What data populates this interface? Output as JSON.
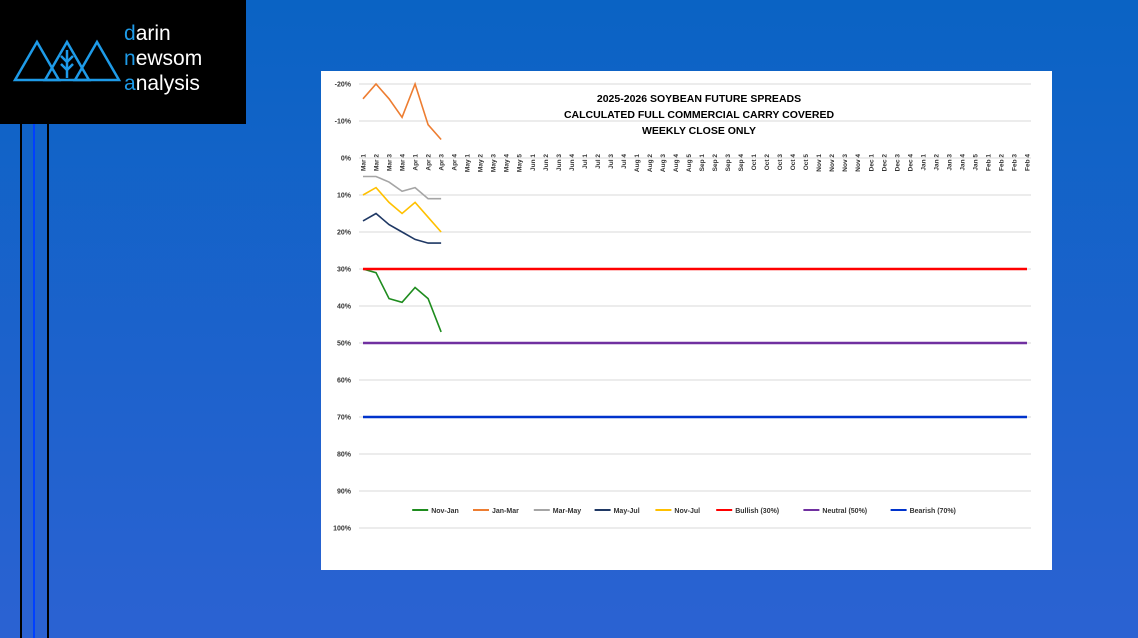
{
  "logo": [
    "darin",
    "newsom",
    "analysis"
  ],
  "chart_data": {
    "type": "line",
    "title": [
      "2025-2026 SOYBEAN FUTURE SPREADS",
      "CALCULATED FULL COMMERCIAL CARRY COVERED",
      "WEEKLY CLOSE ONLY"
    ],
    "categories": [
      "Mar 1",
      "Mar 2",
      "Mar 3",
      "Mar 4",
      "Apr 1",
      "Apr 2",
      "Apr 3",
      "Apr 4",
      "May 1",
      "May 2",
      "May 3",
      "May 4",
      "May 5",
      "Jun 1",
      "Jun 2",
      "Jun 3",
      "Jun 4",
      "Jul 1",
      "Jul 2",
      "Jul 3",
      "Jul 4",
      "Aug 1",
      "Aug 2",
      "Aug 3",
      "Aug 4",
      "Aug 5",
      "Sep 1",
      "Sep 2",
      "Sep 3",
      "Sep 4",
      "Oct 1",
      "Oct 2",
      "Oct 3",
      "Oct 4",
      "Oct 5",
      "Nov 1",
      "Nov 2",
      "Nov 3",
      "Nov 4",
      "Dec 1",
      "Dec 2",
      "Dec 3",
      "Dec 4",
      "Jan 1",
      "Jan 2",
      "Jan 3",
      "Jan 4",
      "Jan 5",
      "Feb 1",
      "Feb 2",
      "Feb 3",
      "Feb 4"
    ],
    "series": [
      {
        "name": "Nov-Jan",
        "color": "#1e8c1e",
        "values": [
          30,
          31,
          38,
          39,
          35,
          38,
          47,
          null,
          null,
          null,
          null,
          null,
          null,
          null,
          null,
          null,
          null,
          null,
          null,
          null,
          null,
          null,
          null,
          null,
          null,
          null,
          null,
          null,
          null,
          null,
          null,
          null,
          null,
          null,
          null,
          null,
          null,
          null,
          null,
          null,
          null,
          null,
          null,
          null,
          null,
          null,
          null,
          null,
          null,
          null,
          null,
          null
        ]
      },
      {
        "name": "Jan-Mar",
        "color": "#ed7d31",
        "values": [
          -16,
          -20,
          -16,
          -11,
          -20,
          -9,
          -5,
          null,
          null,
          null,
          null,
          null,
          null,
          null,
          null,
          null,
          null,
          null,
          null,
          null,
          null,
          null,
          null,
          null,
          null,
          null,
          null,
          null,
          null,
          null,
          null,
          null,
          null,
          null,
          null,
          null,
          null,
          null,
          null,
          null,
          null,
          null,
          null,
          null,
          null,
          null,
          null,
          null,
          null,
          null,
          null,
          null
        ]
      },
      {
        "name": "Mar-May",
        "color": "#a5a5a5",
        "values": [
          5,
          5,
          6.5,
          9,
          8,
          11,
          11,
          null,
          null,
          null,
          null,
          null,
          null,
          null,
          null,
          null,
          null,
          null,
          null,
          null,
          null,
          null,
          null,
          null,
          null,
          null,
          null,
          null,
          null,
          null,
          null,
          null,
          null,
          null,
          null,
          null,
          null,
          null,
          null,
          null,
          null,
          null,
          null,
          null,
          null,
          null,
          null,
          null,
          null,
          null,
          null,
          null
        ]
      },
      {
        "name": "May-Jul",
        "color": "#1f3864",
        "values": [
          17,
          15,
          18,
          20,
          22,
          23,
          23,
          null,
          null,
          null,
          null,
          null,
          null,
          null,
          null,
          null,
          null,
          null,
          null,
          null,
          null,
          null,
          null,
          null,
          null,
          null,
          null,
          null,
          null,
          null,
          null,
          null,
          null,
          null,
          null,
          null,
          null,
          null,
          null,
          null,
          null,
          null,
          null,
          null,
          null,
          null,
          null,
          null,
          null,
          null,
          null,
          null
        ]
      },
      {
        "name": "Nov-Jul",
        "color": "#ffc000",
        "values": [
          10,
          8,
          12,
          15,
          12,
          16,
          20,
          null,
          null,
          null,
          null,
          null,
          null,
          null,
          null,
          null,
          null,
          null,
          null,
          null,
          null,
          null,
          null,
          null,
          null,
          null,
          null,
          null,
          null,
          null,
          null,
          null,
          null,
          null,
          null,
          null,
          null,
          null,
          null,
          null,
          null,
          null,
          null,
          null,
          null,
          null,
          null,
          null,
          null,
          null,
          null,
          null
        ]
      },
      {
        "name": "Bullish (30%)",
        "color": "#ff0000",
        "values": [
          30,
          30,
          30,
          30,
          30,
          30,
          30,
          30,
          30,
          30,
          30,
          30,
          30,
          30,
          30,
          30,
          30,
          30,
          30,
          30,
          30,
          30,
          30,
          30,
          30,
          30,
          30,
          30,
          30,
          30,
          30,
          30,
          30,
          30,
          30,
          30,
          30,
          30,
          30,
          30,
          30,
          30,
          30,
          30,
          30,
          30,
          30,
          30,
          30,
          30,
          30,
          30
        ]
      },
      {
        "name": "Neutral (50%)",
        "color": "#7030a0",
        "values": [
          50,
          50,
          50,
          50,
          50,
          50,
          50,
          50,
          50,
          50,
          50,
          50,
          50,
          50,
          50,
          50,
          50,
          50,
          50,
          50,
          50,
          50,
          50,
          50,
          50,
          50,
          50,
          50,
          50,
          50,
          50,
          50,
          50,
          50,
          50,
          50,
          50,
          50,
          50,
          50,
          50,
          50,
          50,
          50,
          50,
          50,
          50,
          50,
          50,
          50,
          50,
          50
        ]
      },
      {
        "name": "Bearish (70%)",
        "color": "#0033cc",
        "values": [
          70,
          70,
          70,
          70,
          70,
          70,
          70,
          70,
          70,
          70,
          70,
          70,
          70,
          70,
          70,
          70,
          70,
          70,
          70,
          70,
          70,
          70,
          70,
          70,
          70,
          70,
          70,
          70,
          70,
          70,
          70,
          70,
          70,
          70,
          70,
          70,
          70,
          70,
          70,
          70,
          70,
          70,
          70,
          70,
          70,
          70,
          70,
          70,
          70,
          70,
          70,
          70
        ]
      }
    ],
    "ylim": [
      -20,
      100
    ],
    "y_inverted": true,
    "yticks": [
      {
        "value": -20,
        "label": "-20%"
      },
      {
        "value": -10,
        "label": "-10%"
      },
      {
        "value": 0,
        "label": "0%"
      },
      {
        "value": 10,
        "label": "10%"
      },
      {
        "value": 20,
        "label": "20%"
      },
      {
        "value": 30,
        "label": "30%"
      },
      {
        "value": 40,
        "label": "40%"
      },
      {
        "value": 50,
        "label": "50%"
      },
      {
        "value": 60,
        "label": "60%"
      },
      {
        "value": 70,
        "label": "70%"
      },
      {
        "value": 80,
        "label": "80%"
      },
      {
        "value": 90,
        "label": "90%"
      },
      {
        "value": 100,
        "label": "100%"
      }
    ],
    "grid": true,
    "legend": "bottom"
  }
}
